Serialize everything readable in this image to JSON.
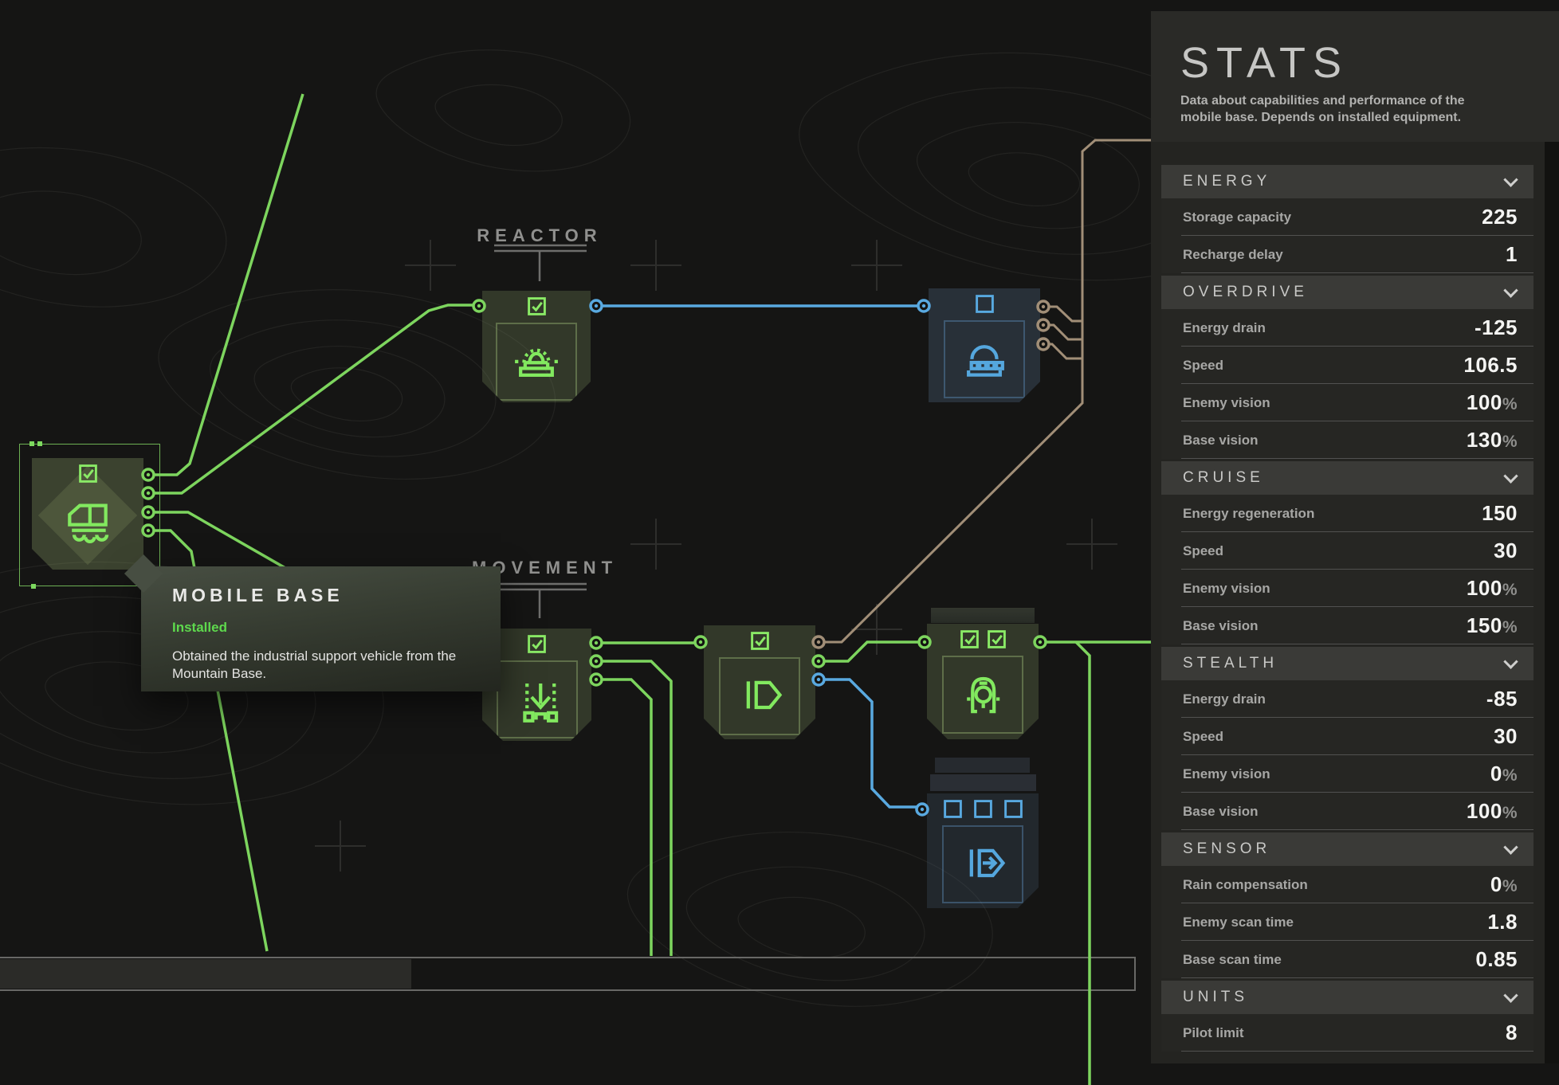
{
  "canvas": {
    "labels": {
      "reactor": "REACTOR",
      "movement": "MOVEMENT"
    },
    "tooltip": {
      "title": "MOBILE BASE",
      "status": "Installed",
      "body": "Obtained the industrial support vehicle from the Mountain Base."
    }
  },
  "sidebar": {
    "title": "STATS",
    "subtitle": "Data about capabilities and performance of the mobile base. Depends on installed equipment.",
    "sections": [
      {
        "title": "ENERGY",
        "rows": [
          {
            "label": "Storage capacity",
            "value": "225"
          },
          {
            "label": "Recharge delay",
            "value": "1"
          }
        ]
      },
      {
        "title": "OVERDRIVE",
        "rows": [
          {
            "label": "Energy drain",
            "value": "-125"
          },
          {
            "label": "Speed",
            "value": "106.5"
          },
          {
            "label": "Enemy vision",
            "value": "100",
            "percent": true
          },
          {
            "label": "Base vision",
            "value": "130",
            "percent": true
          }
        ]
      },
      {
        "title": "CRUISE",
        "rows": [
          {
            "label": "Energy regeneration",
            "value": "150"
          },
          {
            "label": "Speed",
            "value": "30"
          },
          {
            "label": "Enemy vision",
            "value": "100",
            "percent": true
          },
          {
            "label": "Base vision",
            "value": "150",
            "percent": true
          }
        ]
      },
      {
        "title": "STEALTH",
        "rows": [
          {
            "label": "Energy drain",
            "value": "-85"
          },
          {
            "label": "Speed",
            "value": "30"
          },
          {
            "label": "Enemy vision",
            "value": "0",
            "percent": true
          },
          {
            "label": "Base vision",
            "value": "100",
            "percent": true
          }
        ]
      },
      {
        "title": "SENSOR",
        "rows": [
          {
            "label": "Rain compensation",
            "value": "0",
            "percent": true
          },
          {
            "label": "Enemy scan time",
            "value": "1.8"
          },
          {
            "label": "Base scan time",
            "value": "0.85"
          }
        ]
      },
      {
        "title": "UNITS",
        "rows": [
          {
            "label": "Pilot limit",
            "value": "8"
          }
        ]
      }
    ]
  },
  "colors": {
    "wire_green": "#7dd55e",
    "wire_blue": "#59a9e0",
    "wire_tan": "#a18e77",
    "installed_green": "#5ed94d",
    "panel_bg": "#242421"
  }
}
